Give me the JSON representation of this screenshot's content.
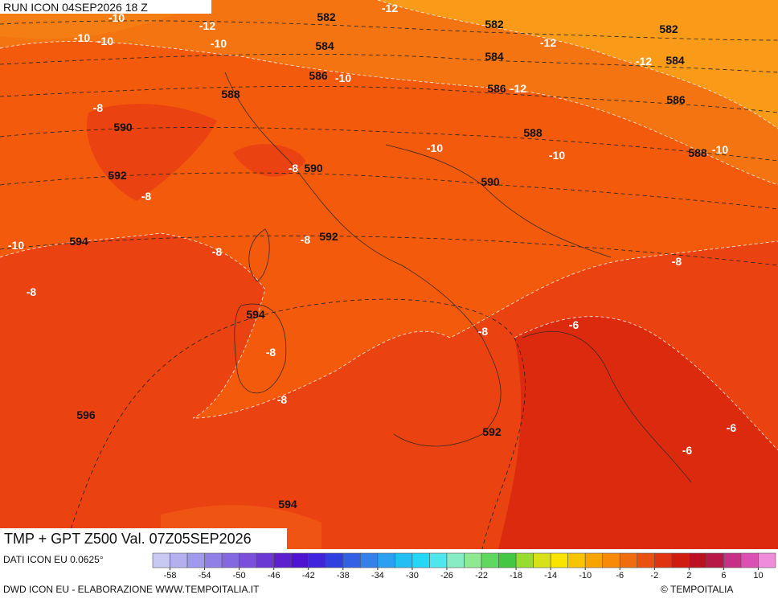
{
  "header": {
    "run": "RUN ICON 04SEP2026 18 Z"
  },
  "map": {
    "title": "TMP + GPT Z500 Val. 07Z05SEP2026",
    "gpt_labels": [
      "582",
      "582",
      "582",
      "584",
      "584",
      "584",
      "586",
      "586",
      "586",
      "588",
      "588",
      "588",
      "590",
      "590",
      "590",
      "592",
      "592",
      "592",
      "594",
      "594",
      "594",
      "596"
    ],
    "tmp_labels": [
      "-10",
      "-12",
      "-12",
      "-10",
      "-10",
      "-10",
      "-12",
      "-12",
      "-10",
      "-12",
      "-8",
      "-10",
      "-10",
      "-10",
      "-8",
      "-8",
      "-8",
      "-8",
      "-10",
      "-8",
      "-8",
      "-8",
      "-6",
      "-8",
      "-8",
      "-6",
      "-6"
    ]
  },
  "colorbar": {
    "lim": [
      -60,
      12
    ],
    "ticks": [
      -58,
      -54,
      -50,
      -46,
      -42,
      -38,
      -34,
      -30,
      -26,
      -22,
      -18,
      -14,
      -10,
      -6,
      -2,
      2,
      6,
      10
    ],
    "colors": [
      "#c8c8f4",
      "#b4b0f0",
      "#a09aec",
      "#9080e6",
      "#8468e0",
      "#7a50da",
      "#6c38d4",
      "#5e20ce",
      "#4e14d2",
      "#3e24da",
      "#3040e0",
      "#3460e6",
      "#3680ea",
      "#2ca0f0",
      "#22bef4",
      "#26d6f6",
      "#50e6ee",
      "#86ecc4",
      "#90e890",
      "#60d860",
      "#44c844",
      "#98dc30",
      "#d8e018",
      "#f8e400",
      "#f8c400",
      "#f8a400",
      "#f88a08",
      "#f06c10",
      "#ea5010",
      "#e03410",
      "#d01c10",
      "#bc1020",
      "#b81848",
      "#c83088",
      "#dc50b4",
      "#f08cdc"
    ]
  },
  "footer": {
    "source": "DATI ICON EU 0.0625°",
    "credit": "DWD ICON EU - ELABORAZIONE WWW.TEMPOITALIA.IT",
    "brand": "© TEMPOITALIA"
  }
}
